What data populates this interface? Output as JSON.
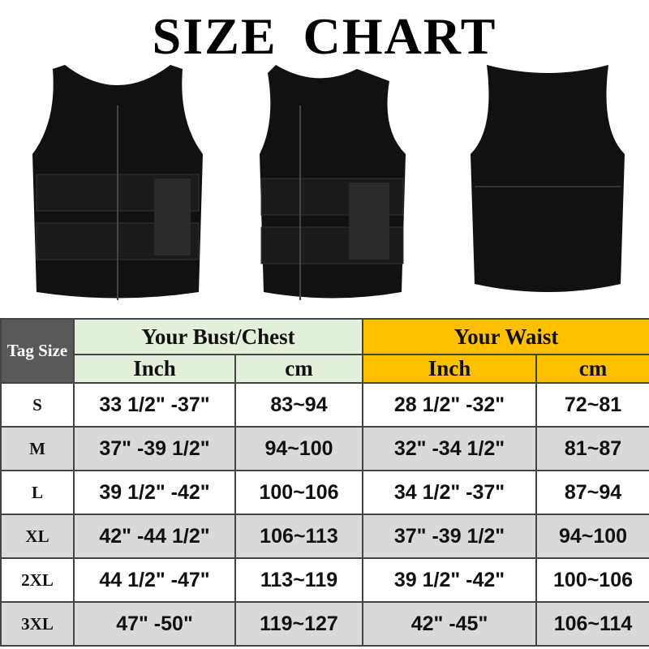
{
  "title": "SIZE CHART",
  "table": {
    "tag_size": "Tag Size",
    "groups": [
      "Your Bust/Chest",
      "Your Waist"
    ],
    "units": [
      "Inch",
      "cm",
      "Inch",
      "cm"
    ],
    "rows": [
      {
        "size": "S",
        "bust_in": "33 1/2\" -37\"",
        "bust_cm": "83~94",
        "waist_in": "28 1/2\" -32\"",
        "waist_cm": "72~81"
      },
      {
        "size": "M",
        "bust_in": "37\" -39 1/2\"",
        "bust_cm": "94~100",
        "waist_in": "32\" -34 1/2\"",
        "waist_cm": "81~87"
      },
      {
        "size": "L",
        "bust_in": "39 1/2\" -42\"",
        "bust_cm": "100~106",
        "waist_in": "34 1/2\" -37\"",
        "waist_cm": "87~94"
      },
      {
        "size": "XL",
        "bust_in": "42\" -44 1/2\"",
        "bust_cm": "106~113",
        "waist_in": "37\" -39 1/2\"",
        "waist_cm": "94~100"
      },
      {
        "size": "2XL",
        "bust_in": "44 1/2\" -47\"",
        "bust_cm": "113~119",
        "waist_in": "39 1/2\" -42\"",
        "waist_cm": "100~106"
      },
      {
        "size": "3XL",
        "bust_in": "47\" -50\"",
        "bust_cm": "119~127",
        "waist_in": "42\" -45\"",
        "waist_cm": "106~114"
      }
    ]
  },
  "colors": {
    "tag_header": "#595959",
    "bust_header": "#e2efda",
    "waist_header": "#ffc000",
    "alt_row": "#d9d9d9"
  }
}
